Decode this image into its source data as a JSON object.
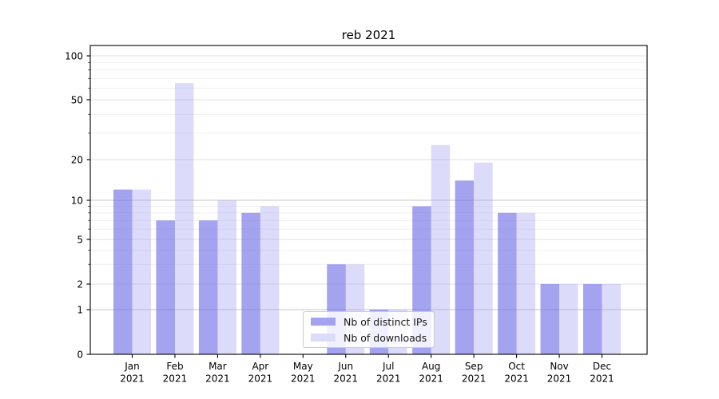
{
  "chart_data": {
    "type": "bar",
    "title": "reb 2021",
    "categories": [
      "Jan 2021",
      "Feb 2021",
      "Mar 2021",
      "Apr 2021",
      "May 2021",
      "Jun 2021",
      "Jul 2021",
      "Aug 2021",
      "Sep 2021",
      "Oct 2021",
      "Nov 2021",
      "Dec 2021"
    ],
    "series": [
      {
        "name": "Nb of distinct IPs",
        "color": "#a3a3ef",
        "values": [
          12,
          7,
          7,
          8,
          0,
          3,
          1,
          9,
          14,
          8,
          2,
          2
        ]
      },
      {
        "name": "Nb of downloads",
        "color": "#dcdcfa",
        "values": [
          12,
          65,
          10,
          9,
          0,
          3,
          1,
          25,
          19,
          8,
          2,
          2
        ]
      }
    ],
    "xlabel": "",
    "ylabel": "",
    "y_axis": {
      "scale": "symlog",
      "tick_values": [
        0,
        1,
        2,
        5,
        10,
        20,
        50,
        100
      ],
      "tick_labels": [
        "0",
        "1",
        "2",
        "5",
        "10",
        "20",
        "50",
        "100"
      ],
      "minor_gridlines": [
        3,
        4,
        6,
        7,
        8,
        9,
        30,
        40,
        60,
        70,
        80,
        90
      ],
      "ylim": [
        0,
        117
      ]
    },
    "grid": true,
    "legend": {
      "position": "lower center",
      "entries": [
        "Nb of distinct IPs",
        "Nb of downloads"
      ]
    }
  }
}
